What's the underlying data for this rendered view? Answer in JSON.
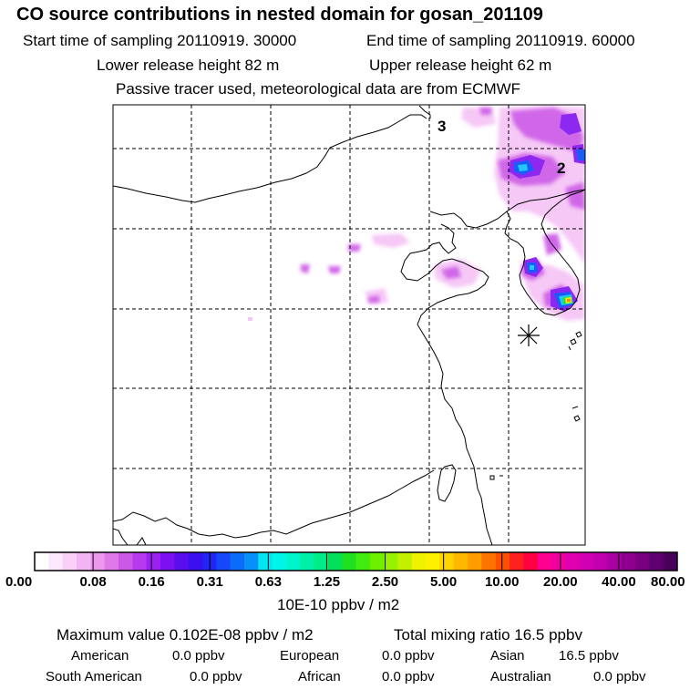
{
  "title": "CO  source contributions in nested domain for gosan_201109",
  "start_label": "Start time of sampling 20110919. 30000",
  "end_label": "End time of sampling 20110919. 60000",
  "lower_label": "Lower release height   82 m",
  "upper_label": "Upper release height   62 m",
  "tracer_note": "Passive tracer used, meteorological data are from ECMWF",
  "map": {
    "contour_labels": [
      "3",
      "2"
    ],
    "colorbar": {
      "tick_labels": [
        "0.00",
        "0.08",
        "0.16",
        "0.31",
        "0.63",
        "1.25",
        "2.50",
        "5.00",
        "10.00",
        "20.00",
        "40.00",
        "80.00"
      ],
      "colors": [
        "#ffffff",
        "#fce8fc",
        "#f8d0f8",
        "#f2b4f2",
        "#ec98ec",
        "#e078e8",
        "#cc58e8",
        "#b83aee",
        "#9c20f2",
        "#7c10f0",
        "#5a0ef0",
        "#3a10f0",
        "#2024f4",
        "#1448f8",
        "#0c6cf8",
        "#0890f8",
        "#00e6f2",
        "#00f4e8",
        "#00f4cc",
        "#00f0a8",
        "#00ec88",
        "#00e05a",
        "#20e020",
        "#40ec10",
        "#6cf000",
        "#98f000",
        "#c4f000",
        "#eef400",
        "#fff000",
        "#ffd400",
        "#ffb800",
        "#ff9c00",
        "#ff7400",
        "#ff5000",
        "#ff2020",
        "#ff0040",
        "#ff0090",
        "#f000a0",
        "#e000b0",
        "#d000b4",
        "#c000b0",
        "#a800a0",
        "#900090",
        "#780080",
        "#600070",
        "#480058"
      ],
      "unit_label": "10E-10 ppbv / m2"
    }
  },
  "stats": {
    "max_label": "Maximum value  0.102E-08 ppbv / m2",
    "total_label": "Total mixing ratio        16.5 ppbv",
    "american": "American",
    "american_val": "0.0 ppbv",
    "european": "European",
    "european_val": "0.0 ppbv",
    "asian": "Asian",
    "asian_val": "16.5 ppbv",
    "south_american": "South American",
    "south_american_val": "0.0 ppbv",
    "african": "African",
    "african_val": "0.0 ppbv",
    "australian": "Australian",
    "australian_val": "0.0 ppbv"
  }
}
